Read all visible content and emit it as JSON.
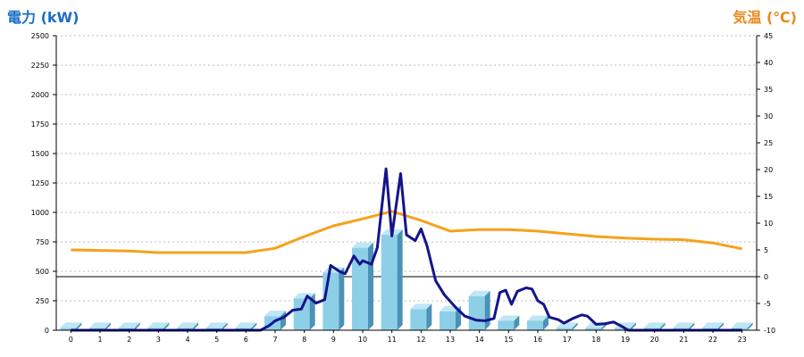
{
  "header": {
    "left_title": "電力 (kW)",
    "right_title": "気温 (℃)"
  },
  "colors": {
    "left_title": "#1a6fc4",
    "right_title": "#e98a1c",
    "bar_front": "#8ecfe8",
    "bar_side": "#4a93b6",
    "bar_top": "#bfe6f5",
    "power_line": "#14148a",
    "temperature_line": "#f7a11a",
    "grid": "#bdbdbd",
    "zero_line": "#000000"
  },
  "chart_data": {
    "type": "bar",
    "categories": [
      "0",
      "1",
      "2",
      "3",
      "4",
      "5",
      "6",
      "7",
      "8",
      "9",
      "10",
      "11",
      "12",
      "13",
      "14",
      "15",
      "16",
      "17",
      "18",
      "19",
      "20",
      "21",
      "22",
      "23"
    ],
    "left_axis": {
      "min": 0,
      "max": 2500,
      "ticks": [
        "0",
        "250",
        "500",
        "750",
        "1000",
        "1250",
        "1500",
        "1750",
        "2000",
        "2250",
        "2500"
      ]
    },
    "right_axis": {
      "min": -10,
      "max": 45,
      "ticks": [
        "-10",
        "-5",
        "0",
        "5",
        "10",
        "15",
        "20",
        "25",
        "30",
        "35",
        "40",
        "45"
      ]
    },
    "grid": true,
    "series": [
      {
        "kind": "bar",
        "axis": "left",
        "values": [
          20,
          20,
          20,
          20,
          20,
          20,
          20,
          120,
          270,
          490,
          700,
          810,
          180,
          160,
          290,
          80,
          80,
          20,
          20,
          20,
          20,
          20,
          20,
          20
        ]
      },
      {
        "kind": "line",
        "axis": "left",
        "points": [
          [
            0,
            0
          ],
          [
            6.5,
            0
          ],
          [
            6.8,
            40
          ],
          [
            7,
            80
          ],
          [
            7.3,
            110
          ],
          [
            7.6,
            170
          ],
          [
            7.9,
            180
          ],
          [
            8.1,
            290
          ],
          [
            8.4,
            230
          ],
          [
            8.7,
            260
          ],
          [
            8.9,
            550
          ],
          [
            9.2,
            500
          ],
          [
            9.4,
            480
          ],
          [
            9.7,
            630
          ],
          [
            9.9,
            560
          ],
          [
            10,
            590
          ],
          [
            10.2,
            570
          ],
          [
            10.3,
            560
          ],
          [
            10.5,
            700
          ],
          [
            10.8,
            1370
          ],
          [
            11,
            800
          ],
          [
            11.3,
            1330
          ],
          [
            11.5,
            810
          ],
          [
            11.8,
            760
          ],
          [
            12,
            860
          ],
          [
            12.2,
            720
          ],
          [
            12.5,
            420
          ],
          [
            12.8,
            300
          ],
          [
            13.2,
            190
          ],
          [
            13.5,
            120
          ],
          [
            13.9,
            85
          ],
          [
            14.2,
            80
          ],
          [
            14.5,
            100
          ],
          [
            14.7,
            320
          ],
          [
            14.9,
            340
          ],
          [
            15.1,
            220
          ],
          [
            15.3,
            330
          ],
          [
            15.6,
            360
          ],
          [
            15.8,
            350
          ],
          [
            16,
            250
          ],
          [
            16.2,
            220
          ],
          [
            16.4,
            110
          ],
          [
            16.7,
            90
          ],
          [
            16.9,
            60
          ],
          [
            17.2,
            100
          ],
          [
            17.5,
            130
          ],
          [
            17.7,
            120
          ],
          [
            18,
            50
          ],
          [
            18.3,
            55
          ],
          [
            18.6,
            70
          ],
          [
            18.9,
            30
          ],
          [
            19.1,
            0
          ],
          [
            23,
            0
          ]
        ]
      },
      {
        "kind": "line",
        "axis": "right",
        "values": [
          5,
          4.9,
          4.8,
          4.5,
          4.5,
          4.5,
          4.5,
          5.3,
          7.5,
          9.5,
          10.8,
          12.2,
          10.5,
          8.5,
          8.8,
          8.8,
          8.5,
          8,
          7.5,
          7.2,
          7,
          6.9,
          6.3,
          5.2
        ]
      }
    ],
    "reference_line": {
      "axis": "right",
      "value": 0
    }
  }
}
